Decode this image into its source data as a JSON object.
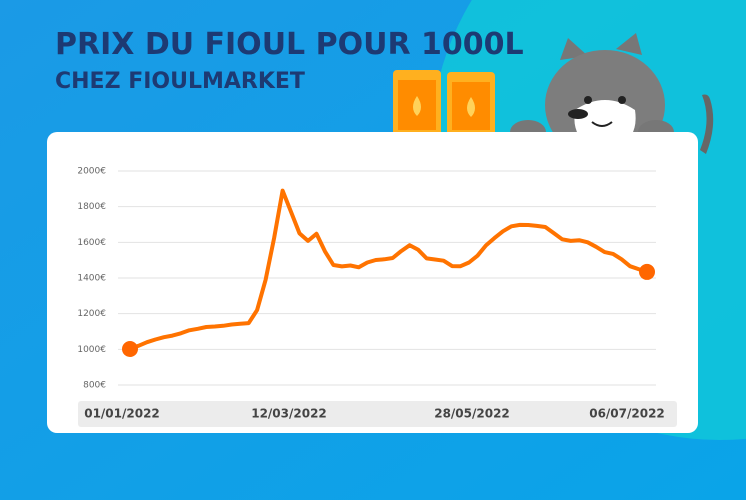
{
  "chart_data": {
    "type": "line",
    "title": "PRIX DU FIOUL POUR 1000L",
    "subtitle": "CHEZ FIOULMARKET",
    "color": "#ff7300",
    "values": [
      1002,
      1020,
      1040,
      1055,
      1068,
      1077,
      1090,
      1107,
      1115,
      1125,
      1128,
      1132,
      1139,
      1144,
      1147,
      1220,
      1390,
      1624,
      1890,
      1771,
      1650,
      1608,
      1648,
      1550,
      1473,
      1465,
      1470,
      1460,
      1487,
      1501,
      1505,
      1512,
      1551,
      1584,
      1558,
      1510,
      1504,
      1497,
      1467,
      1466,
      1487,
      1525,
      1583,
      1624,
      1662,
      1690,
      1698,
      1697,
      1692,
      1686,
      1652,
      1617,
      1608,
      1612,
      1600,
      1575,
      1545,
      1535,
      1505,
      1466,
      1450,
      1434
    ],
    "ylim": [
      800,
      2000
    ],
    "yticks": [
      {
        "value": 800,
        "label": "800€"
      },
      {
        "value": 1000,
        "label": "1000€"
      },
      {
        "value": 1200,
        "label": "1200€"
      },
      {
        "value": 1400,
        "label": "1400€"
      },
      {
        "value": 1600,
        "label": "1600€"
      },
      {
        "value": 1800,
        "label": "1800€"
      },
      {
        "value": 2000,
        "label": "2000€"
      }
    ],
    "x_labels": [
      "01/01/2022",
      "12/03/2022",
      "28/05/2022",
      "06/07/2022"
    ],
    "grid": true
  }
}
